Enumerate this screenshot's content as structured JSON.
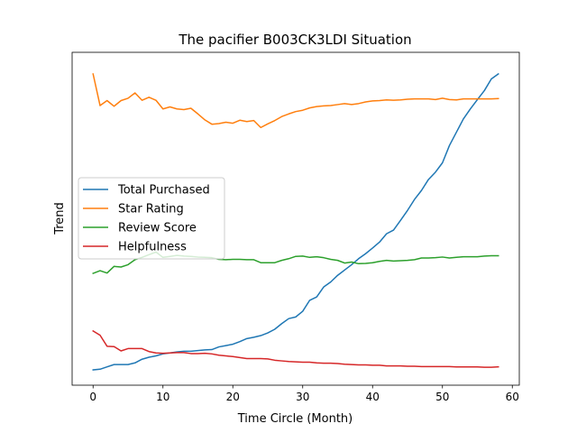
{
  "chart_data": {
    "type": "line",
    "title": "The pacifier B003CK3LDI Situation",
    "xlabel": "Time Circle (Month)",
    "ylabel": "Trend",
    "xlim": [
      -3,
      61
    ],
    "ylim": [
      0,
      1
    ],
    "xticks": [
      0,
      10,
      20,
      30,
      40,
      50,
      60
    ],
    "show_yticks": false,
    "grid": false,
    "legend_position": "center-left",
    "x": [
      0,
      1,
      2,
      3,
      4,
      5,
      6,
      7,
      8,
      9,
      10,
      11,
      12,
      13,
      14,
      15,
      16,
      17,
      18,
      19,
      20,
      21,
      22,
      23,
      24,
      25,
      26,
      27,
      28,
      29,
      30,
      31,
      32,
      33,
      34,
      35,
      36,
      37,
      38,
      39,
      40,
      41,
      42,
      43,
      44,
      45,
      46,
      47,
      48,
      49,
      50,
      51,
      52,
      53,
      54,
      55,
      56,
      57,
      58
    ],
    "series": [
      {
        "name": "Total Purchased",
        "color": "#1f77b4",
        "values": [
          0.046,
          0.048,
          0.055,
          0.062,
          0.062,
          0.062,
          0.067,
          0.078,
          0.084,
          0.088,
          0.094,
          0.097,
          0.1,
          0.102,
          0.102,
          0.104,
          0.106,
          0.107,
          0.115,
          0.119,
          0.123,
          0.131,
          0.14,
          0.144,
          0.149,
          0.157,
          0.168,
          0.185,
          0.2,
          0.205,
          0.222,
          0.255,
          0.265,
          0.295,
          0.31,
          0.33,
          0.346,
          0.362,
          0.38,
          0.395,
          0.412,
          0.43,
          0.455,
          0.466,
          0.495,
          0.525,
          0.558,
          0.585,
          0.618,
          0.64,
          0.668,
          0.72,
          0.76,
          0.8,
          0.83,
          0.858,
          0.885,
          0.92,
          0.935
        ]
      },
      {
        "name": "Star Rating",
        "color": "#ff7f0e",
        "values": [
          0.935,
          0.84,
          0.855,
          0.838,
          0.855,
          0.862,
          0.878,
          0.856,
          0.865,
          0.856,
          0.83,
          0.836,
          0.83,
          0.828,
          0.832,
          0.815,
          0.797,
          0.784,
          0.786,
          0.79,
          0.787,
          0.796,
          0.792,
          0.795,
          0.774,
          0.785,
          0.795,
          0.807,
          0.815,
          0.822,
          0.826,
          0.833,
          0.837,
          0.839,
          0.84,
          0.843,
          0.846,
          0.843,
          0.846,
          0.851,
          0.854,
          0.855,
          0.857,
          0.856,
          0.857,
          0.859,
          0.86,
          0.86,
          0.86,
          0.858,
          0.862,
          0.858,
          0.857,
          0.86,
          0.86,
          0.86,
          0.86,
          0.86,
          0.861
        ]
      },
      {
        "name": "Review Score",
        "color": "#2ca02c",
        "values": [
          0.336,
          0.344,
          0.337,
          0.357,
          0.355,
          0.362,
          0.377,
          0.384,
          0.392,
          0.4,
          0.384,
          0.387,
          0.39,
          0.388,
          0.387,
          0.385,
          0.384,
          0.383,
          0.378,
          0.377,
          0.378,
          0.378,
          0.377,
          0.377,
          0.368,
          0.368,
          0.368,
          0.375,
          0.38,
          0.387,
          0.388,
          0.384,
          0.386,
          0.383,
          0.378,
          0.375,
          0.367,
          0.37,
          0.365,
          0.366,
          0.368,
          0.372,
          0.375,
          0.373,
          0.374,
          0.375,
          0.377,
          0.382,
          0.382,
          0.383,
          0.385,
          0.382,
          0.384,
          0.386,
          0.386,
          0.386,
          0.388,
          0.389,
          0.389
        ]
      },
      {
        "name": "Helpfulness",
        "color": "#d62728",
        "values": [
          0.163,
          0.15,
          0.117,
          0.116,
          0.103,
          0.11,
          0.11,
          0.11,
          0.101,
          0.097,
          0.096,
          0.097,
          0.098,
          0.098,
          0.095,
          0.095,
          0.096,
          0.094,
          0.09,
          0.088,
          0.086,
          0.083,
          0.08,
          0.08,
          0.08,
          0.079,
          0.075,
          0.073,
          0.071,
          0.07,
          0.069,
          0.069,
          0.067,
          0.066,
          0.066,
          0.065,
          0.063,
          0.062,
          0.061,
          0.061,
          0.06,
          0.06,
          0.058,
          0.058,
          0.058,
          0.057,
          0.057,
          0.056,
          0.056,
          0.056,
          0.056,
          0.056,
          0.055,
          0.055,
          0.055,
          0.055,
          0.054,
          0.054,
          0.055
        ]
      }
    ]
  }
}
